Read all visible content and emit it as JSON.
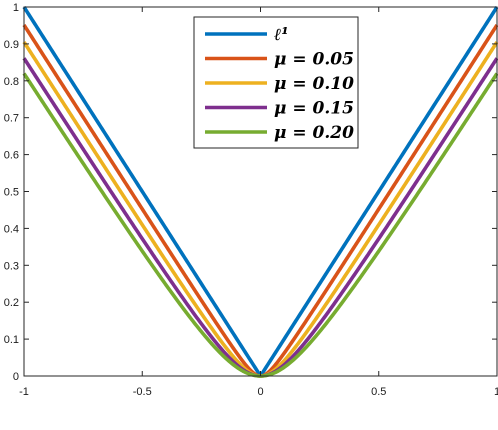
{
  "chart_data": {
    "type": "line",
    "title": "",
    "xlabel": "",
    "ylabel": "",
    "xlim": [
      -1,
      1
    ],
    "ylim": [
      0,
      1
    ],
    "grid": false,
    "legend_position": "top-center",
    "x_ticks": [
      "-1",
      "-0.5",
      "0",
      "0.5",
      "1"
    ],
    "y_ticks": [
      "0",
      "0.1",
      "0.2",
      "0.3",
      "0.4",
      "0.5",
      "0.6",
      "0.7",
      "0.8",
      "0.9",
      "1"
    ],
    "function": "sqrt(x^2 + mu^2) - mu",
    "x": [
      -1,
      -0.75,
      -0.5,
      -0.25,
      -0.1,
      0,
      0.1,
      0.25,
      0.5,
      0.75,
      1
    ],
    "series": [
      {
        "name": "ℓ¹",
        "mu": 0,
        "color": "#0072BD",
        "values": [
          1,
          0.75,
          0.5,
          0.25,
          0.1,
          0,
          0.1,
          0.25,
          0.5,
          0.75,
          1
        ]
      },
      {
        "name": "μ = 0.05",
        "mu": 0.05,
        "color": "#D95319",
        "values": [
          0.951,
          0.702,
          0.452,
          0.205,
          0.062,
          0,
          0.062,
          0.205,
          0.452,
          0.702,
          0.951
        ]
      },
      {
        "name": "μ = 0.10",
        "mu": 0.1,
        "color": "#EDB120",
        "values": [
          0.905,
          0.657,
          0.41,
          0.169,
          0.041,
          0,
          0.041,
          0.169,
          0.41,
          0.657,
          0.905
        ]
      },
      {
        "name": "μ = 0.15",
        "mu": 0.15,
        "color": "#7E2F8E",
        "values": [
          0.861,
          0.615,
          0.372,
          0.142,
          0.03,
          0,
          0.03,
          0.142,
          0.372,
          0.615,
          0.861
        ]
      },
      {
        "name": "μ = 0.20",
        "mu": 0.2,
        "color": "#77AC30",
        "values": [
          0.82,
          0.576,
          0.339,
          0.12,
          0.024,
          0,
          0.024,
          0.12,
          0.339,
          0.576,
          0.82
        ]
      }
    ]
  }
}
